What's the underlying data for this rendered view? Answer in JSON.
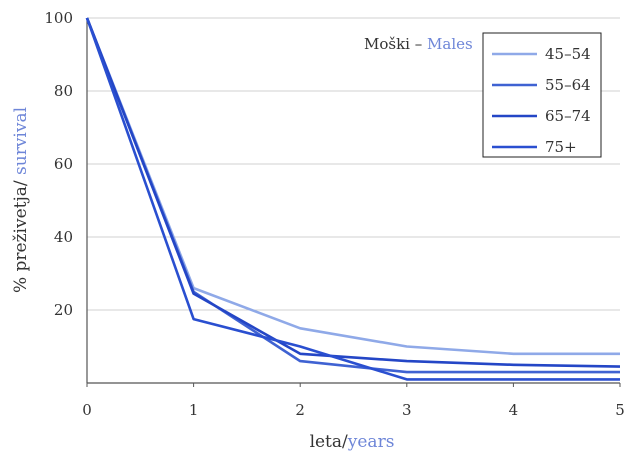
{
  "chart_data": {
    "type": "line",
    "title": {
      "part1": "Moški – ",
      "part2": "Males"
    },
    "xlabel": {
      "part1": "leta/",
      "part2": "years"
    },
    "ylabel": {
      "part1": "% preživetja/ ",
      "part2": "survival"
    },
    "x": [
      0,
      1,
      2,
      3,
      4,
      5
    ],
    "xlim": [
      0,
      5
    ],
    "ylim": [
      0,
      100
    ],
    "x_ticks": [
      "0",
      "1",
      "2",
      "3",
      "4",
      "5"
    ],
    "y_ticks": [
      "20",
      "40",
      "60",
      "80",
      "100"
    ],
    "grid": "horizontal",
    "legend_position": "top-right",
    "colors": {
      "accent": "#6e86d8",
      "text": "#333333",
      "grid": "#d0d0d0",
      "axis": "#555555"
    },
    "series": [
      {
        "name": "45–54",
        "color": "#8fa9e8",
        "values": [
          100,
          26,
          15,
          10,
          8,
          8
        ]
      },
      {
        "name": "55–64",
        "color": "#3f62d2",
        "values": [
          100,
          25,
          6,
          3,
          3,
          3
        ]
      },
      {
        "name": "65–74",
        "color": "#2446c6",
        "values": [
          100,
          24.5,
          8,
          6,
          5,
          4.5
        ]
      },
      {
        "name": "75+",
        "color": "#2a4fd0",
        "values": [
          100,
          17.5,
          10,
          1,
          1,
          1
        ]
      }
    ]
  }
}
